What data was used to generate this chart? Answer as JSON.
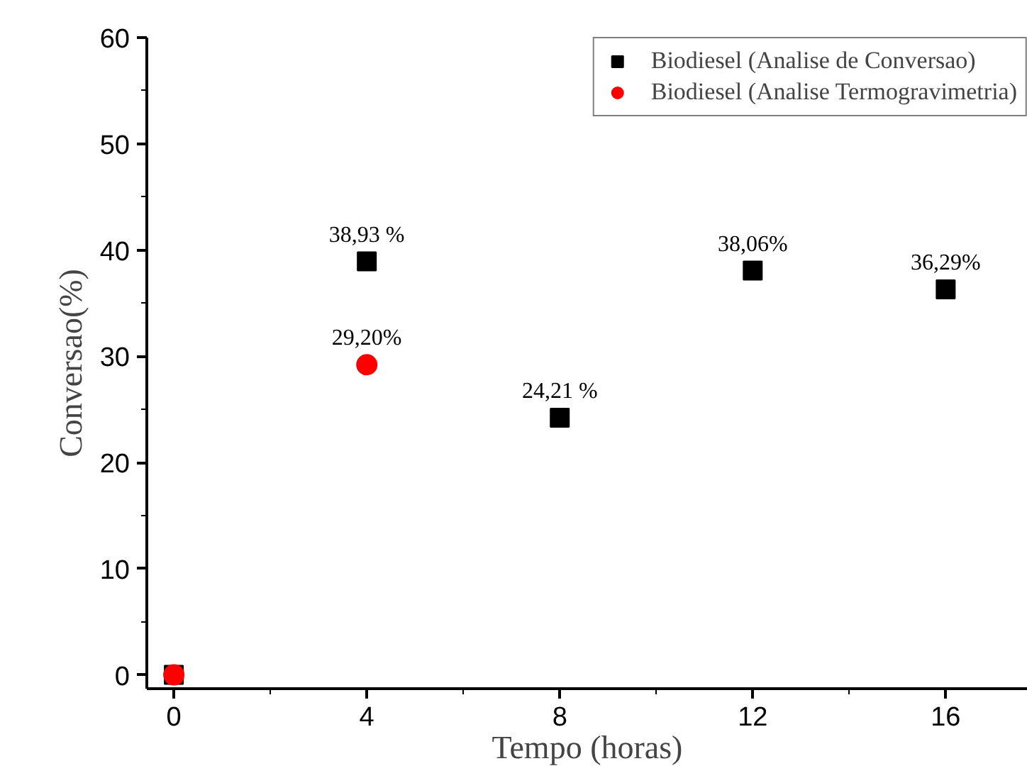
{
  "chart_data": {
    "type": "scatter",
    "xlabel": "Tempo (horas)",
    "ylabel": "Conversao(%)",
    "xlim": [
      -0.56,
      17.7
    ],
    "ylim": [
      -1.3,
      60
    ],
    "xticks": [
      0,
      4,
      8,
      12,
      16
    ],
    "yticks": [
      0,
      10,
      20,
      30,
      40,
      50,
      60
    ],
    "grid": false,
    "legend": "top right",
    "series": [
      {
        "name": "Biodiesel (Analise de Conversao)",
        "color": "#000000",
        "marker": "square",
        "x": [
          0,
          4,
          8,
          12,
          16
        ],
        "values": [
          0,
          38.93,
          24.21,
          38.06,
          36.29
        ],
        "value_labels": [
          null,
          "38,93 %",
          "24,21 %",
          "38,06%",
          "36,29%"
        ]
      },
      {
        "name": "Biodiesel (Analise Termogravimetria)",
        "color": "#ff0000",
        "marker": "circle",
        "x": [
          0,
          4
        ],
        "values": [
          0,
          29.2
        ],
        "value_labels": [
          null,
          "29,20%"
        ]
      }
    ]
  }
}
